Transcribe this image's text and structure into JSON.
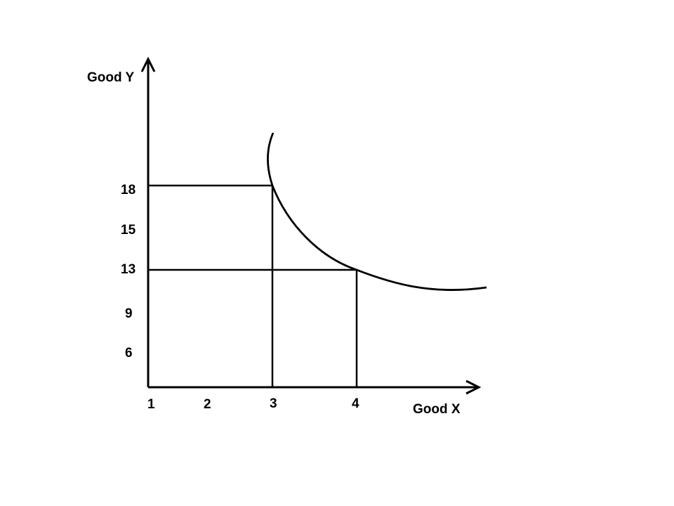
{
  "diagram": {
    "y_axis_label": "Good Y",
    "x_axis_label": "Good X",
    "y_ticks": [
      "18",
      "15",
      "13",
      "9",
      "6"
    ],
    "x_ticks": [
      "1",
      "2",
      "3",
      "4"
    ],
    "colors": {
      "line": "#000000",
      "background": "#ffffff"
    }
  }
}
